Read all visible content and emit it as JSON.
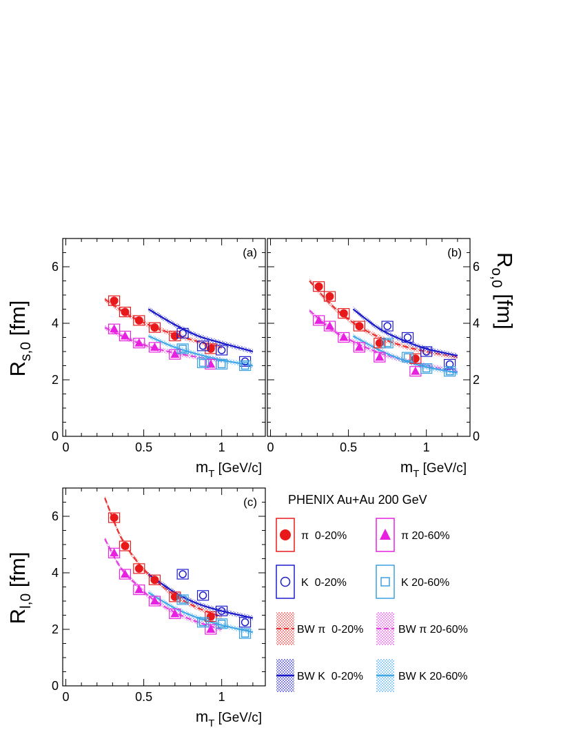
{
  "colors": {
    "pi_central": "#e8191b",
    "pi_peripheral": "#e820e0",
    "k_central": "#1c1ccc",
    "k_peripheral": "#3aa0e0",
    "bw_pi_central": "#e83030",
    "bw_pi_peripheral": "#e040e0",
    "bw_k_central": "#1818c8",
    "bw_k_peripheral": "#40a8e8"
  },
  "legend": {
    "title": "PHENIX Au+Au 200 GeV",
    "items": [
      {
        "key": "pi_c",
        "label": "π  0-20%"
      },
      {
        "key": "pi_p",
        "label": "π 20-60%"
      },
      {
        "key": "k_c",
        "label": "K  0-20%"
      },
      {
        "key": "k_p",
        "label": "K 20-60%"
      },
      {
        "key": "bw_pi_c",
        "label": "BW π  0-20%"
      },
      {
        "key": "bw_pi_p",
        "label": "BW π 20-60%"
      },
      {
        "key": "bw_k_c",
        "label": "BW K  0-20%"
      },
      {
        "key": "bw_k_p",
        "label": "BW K 20-60%"
      }
    ]
  },
  "chart_data": [
    {
      "type": "scatter",
      "panel": "(a)",
      "ylabel_main": "R",
      "ylabel_sub": "s,0",
      "ylabel_unit": " [fm]",
      "xlabel_main": "m",
      "xlabel_sub": "T",
      "xlabel_unit": "  [GeV/c]",
      "xlim": [
        -0.02,
        1.28
      ],
      "ylim": [
        0,
        7
      ],
      "x_ticks": [
        0,
        0.5,
        1
      ],
      "x_tick_labels": [
        "0",
        "0.5",
        "1"
      ],
      "y_ticks": [
        0,
        2,
        4,
        6
      ],
      "y_tick_labels": [
        "0",
        "2",
        "4",
        "6"
      ],
      "y_axis_side": "left",
      "series": [
        {
          "key": "pi_c",
          "x": [
            0.31,
            0.38,
            0.47,
            0.57,
            0.7,
            0.93
          ],
          "y": [
            4.8,
            4.4,
            4.1,
            3.85,
            3.55,
            3.1
          ]
        },
        {
          "key": "pi_p",
          "x": [
            0.31,
            0.38,
            0.47,
            0.57,
            0.7,
            0.93
          ],
          "y": [
            3.8,
            3.55,
            3.3,
            3.15,
            2.9,
            2.55
          ]
        },
        {
          "key": "k_c",
          "x": [
            0.75,
            0.88,
            1.0,
            1.15
          ],
          "y": [
            3.65,
            3.2,
            3.05,
            2.65
          ]
        },
        {
          "key": "k_p",
          "x": [
            0.75,
            0.88,
            1.0,
            1.15
          ],
          "y": [
            3.1,
            2.6,
            2.55,
            2.5
          ]
        }
      ],
      "fits": [
        {
          "key": "bw_pi_c",
          "style": "dashed",
          "x": [
            0.25,
            0.4,
            0.55,
            0.7,
            0.85,
            1.0
          ],
          "y": [
            4.85,
            4.3,
            3.9,
            3.6,
            3.35,
            3.15
          ]
        },
        {
          "key": "bw_pi_p",
          "style": "dashed",
          "x": [
            0.25,
            0.4,
            0.55,
            0.7,
            0.85,
            1.0
          ],
          "y": [
            3.85,
            3.45,
            3.15,
            2.95,
            2.8,
            2.7
          ]
        },
        {
          "key": "bw_k_c",
          "style": "solid",
          "x": [
            0.53,
            0.7,
            0.85,
            1.0,
            1.2
          ],
          "y": [
            4.5,
            3.95,
            3.55,
            3.3,
            3.0
          ]
        },
        {
          "key": "bw_k_p",
          "style": "solid",
          "x": [
            0.53,
            0.7,
            0.85,
            1.0,
            1.2
          ],
          "y": [
            3.55,
            3.15,
            2.9,
            2.7,
            2.5
          ]
        }
      ]
    },
    {
      "type": "scatter",
      "panel": "(b)",
      "ylabel_main": "R",
      "ylabel_sub": "o,0",
      "ylabel_unit": " [fm]",
      "xlabel_main": "m",
      "xlabel_sub": "T",
      "xlabel_unit": "  [GeV/c]",
      "xlim": [
        -0.02,
        1.28
      ],
      "ylim": [
        0,
        7
      ],
      "x_ticks": [
        0,
        0.5,
        1
      ],
      "x_tick_labels": [
        "0",
        "0.5",
        "1"
      ],
      "y_ticks": [
        0,
        2,
        4,
        6
      ],
      "y_tick_labels": [
        "0",
        "2",
        "4",
        "6"
      ],
      "y_axis_side": "right",
      "series": [
        {
          "key": "pi_c",
          "x": [
            0.31,
            0.38,
            0.47,
            0.57,
            0.7,
            0.93
          ],
          "y": [
            5.3,
            4.95,
            4.35,
            3.9,
            3.3,
            2.75
          ]
        },
        {
          "key": "pi_p",
          "x": [
            0.31,
            0.38,
            0.47,
            0.57,
            0.7,
            0.93
          ],
          "y": [
            4.1,
            3.9,
            3.5,
            3.15,
            2.8,
            2.3
          ]
        },
        {
          "key": "k_c",
          "x": [
            0.75,
            0.88,
            1.0,
            1.15
          ],
          "y": [
            3.9,
            3.5,
            3.0,
            2.55
          ]
        },
        {
          "key": "k_p",
          "x": [
            0.75,
            0.88,
            1.0,
            1.15
          ],
          "y": [
            3.3,
            2.8,
            2.4,
            2.3
          ]
        }
      ],
      "fits": [
        {
          "key": "bw_pi_c",
          "style": "dashed",
          "x": [
            0.25,
            0.4,
            0.55,
            0.7,
            0.85,
            1.0,
            1.2
          ],
          "y": [
            5.5,
            4.6,
            3.95,
            3.5,
            3.2,
            3.0,
            2.8
          ]
        },
        {
          "key": "bw_pi_p",
          "style": "dashed",
          "x": [
            0.25,
            0.4,
            0.55,
            0.7,
            0.85,
            1.0,
            1.2
          ],
          "y": [
            4.45,
            3.75,
            3.3,
            2.95,
            2.7,
            2.5,
            2.3
          ]
        },
        {
          "key": "bw_k_c",
          "style": "solid",
          "x": [
            0.53,
            0.7,
            0.85,
            1.0,
            1.2
          ],
          "y": [
            4.5,
            3.8,
            3.4,
            3.1,
            2.85
          ]
        },
        {
          "key": "bw_k_p",
          "style": "solid",
          "x": [
            0.53,
            0.7,
            0.85,
            1.0,
            1.2
          ],
          "y": [
            3.55,
            3.05,
            2.7,
            2.45,
            2.25
          ]
        }
      ]
    },
    {
      "type": "scatter",
      "panel": "(c)",
      "ylabel_main": "R",
      "ylabel_sub": "l,0",
      "ylabel_unit": " [fm]",
      "xlabel_main": "m",
      "xlabel_sub": "T",
      "xlabel_unit": "  [GeV/c]",
      "xlim": [
        -0.02,
        1.28
      ],
      "ylim": [
        0,
        7
      ],
      "x_ticks": [
        0,
        0.5,
        1
      ],
      "x_tick_labels": [
        "0",
        "0.5",
        "1"
      ],
      "y_ticks": [
        0,
        2,
        4,
        6
      ],
      "y_tick_labels": [
        "0",
        "2",
        "4",
        "6"
      ],
      "y_axis_side": "left",
      "series": [
        {
          "key": "pi_c",
          "x": [
            0.31,
            0.38,
            0.47,
            0.57,
            0.7,
            0.93
          ],
          "y": [
            5.95,
            4.95,
            4.15,
            3.75,
            3.15,
            2.45
          ]
        },
        {
          "key": "pi_p",
          "x": [
            0.31,
            0.38,
            0.47,
            0.57,
            0.7,
            0.93
          ],
          "y": [
            4.7,
            3.95,
            3.4,
            3.0,
            2.55,
            2.0
          ]
        },
        {
          "key": "k_c",
          "x": [
            0.75,
            0.88,
            1.0,
            1.15
          ],
          "y": [
            3.95,
            3.2,
            2.65,
            2.25
          ]
        },
        {
          "key": "k_p",
          "x": [
            0.75,
            0.88,
            1.0,
            1.15
          ],
          "y": [
            3.05,
            2.25,
            2.2,
            1.85
          ]
        }
      ],
      "fits": [
        {
          "key": "bw_pi_c",
          "style": "dashed",
          "x": [
            0.25,
            0.35,
            0.45,
            0.55,
            0.7,
            0.85,
            1.0
          ],
          "y": [
            6.65,
            5.3,
            4.45,
            3.85,
            3.2,
            2.75,
            2.45
          ]
        },
        {
          "key": "bw_pi_p",
          "style": "dashed",
          "x": [
            0.25,
            0.35,
            0.45,
            0.55,
            0.7,
            0.85,
            1.0
          ],
          "y": [
            5.2,
            4.2,
            3.6,
            3.1,
            2.6,
            2.25,
            2.0
          ]
        },
        {
          "key": "bw_k_c",
          "style": "solid",
          "x": [
            0.53,
            0.7,
            0.85,
            1.0,
            1.2
          ],
          "y": [
            3.95,
            3.3,
            2.9,
            2.65,
            2.4
          ]
        },
        {
          "key": "bw_k_p",
          "style": "solid",
          "x": [
            0.53,
            0.7,
            0.85,
            1.0,
            1.2
          ],
          "y": [
            3.3,
            2.75,
            2.4,
            2.15,
            1.9
          ]
        }
      ]
    }
  ]
}
